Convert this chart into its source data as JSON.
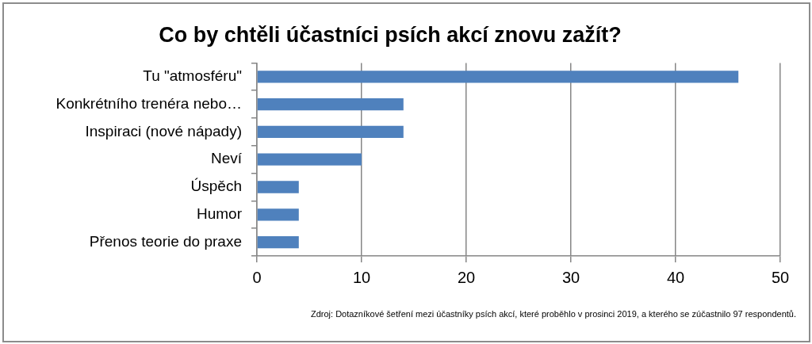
{
  "chart_data": {
    "type": "bar",
    "orientation": "horizontal",
    "title": "Co by chtěli účastníci psích akcí znovu zažít?",
    "categories": [
      "Tu \"atmosféru\"",
      "Konkrétního trenéra nebo…",
      "Inspiraci (nové nápady)",
      "Neví",
      "Úspěch",
      "Humor",
      "Přenos teorie do praxe"
    ],
    "values": [
      46,
      14,
      14,
      10,
      4,
      4,
      4
    ],
    "color": "#4f81bd",
    "xlim": [
      0,
      50
    ],
    "xticks": [
      0,
      10,
      20,
      30,
      40,
      50
    ],
    "grid": "x",
    "annotations": [
      "Zdroj: Dotazníkové šetření mezi účastníky psích akcí, které proběhlo v prosinci 2019, a kterého se zúčastnilo 97 respondentů."
    ]
  }
}
